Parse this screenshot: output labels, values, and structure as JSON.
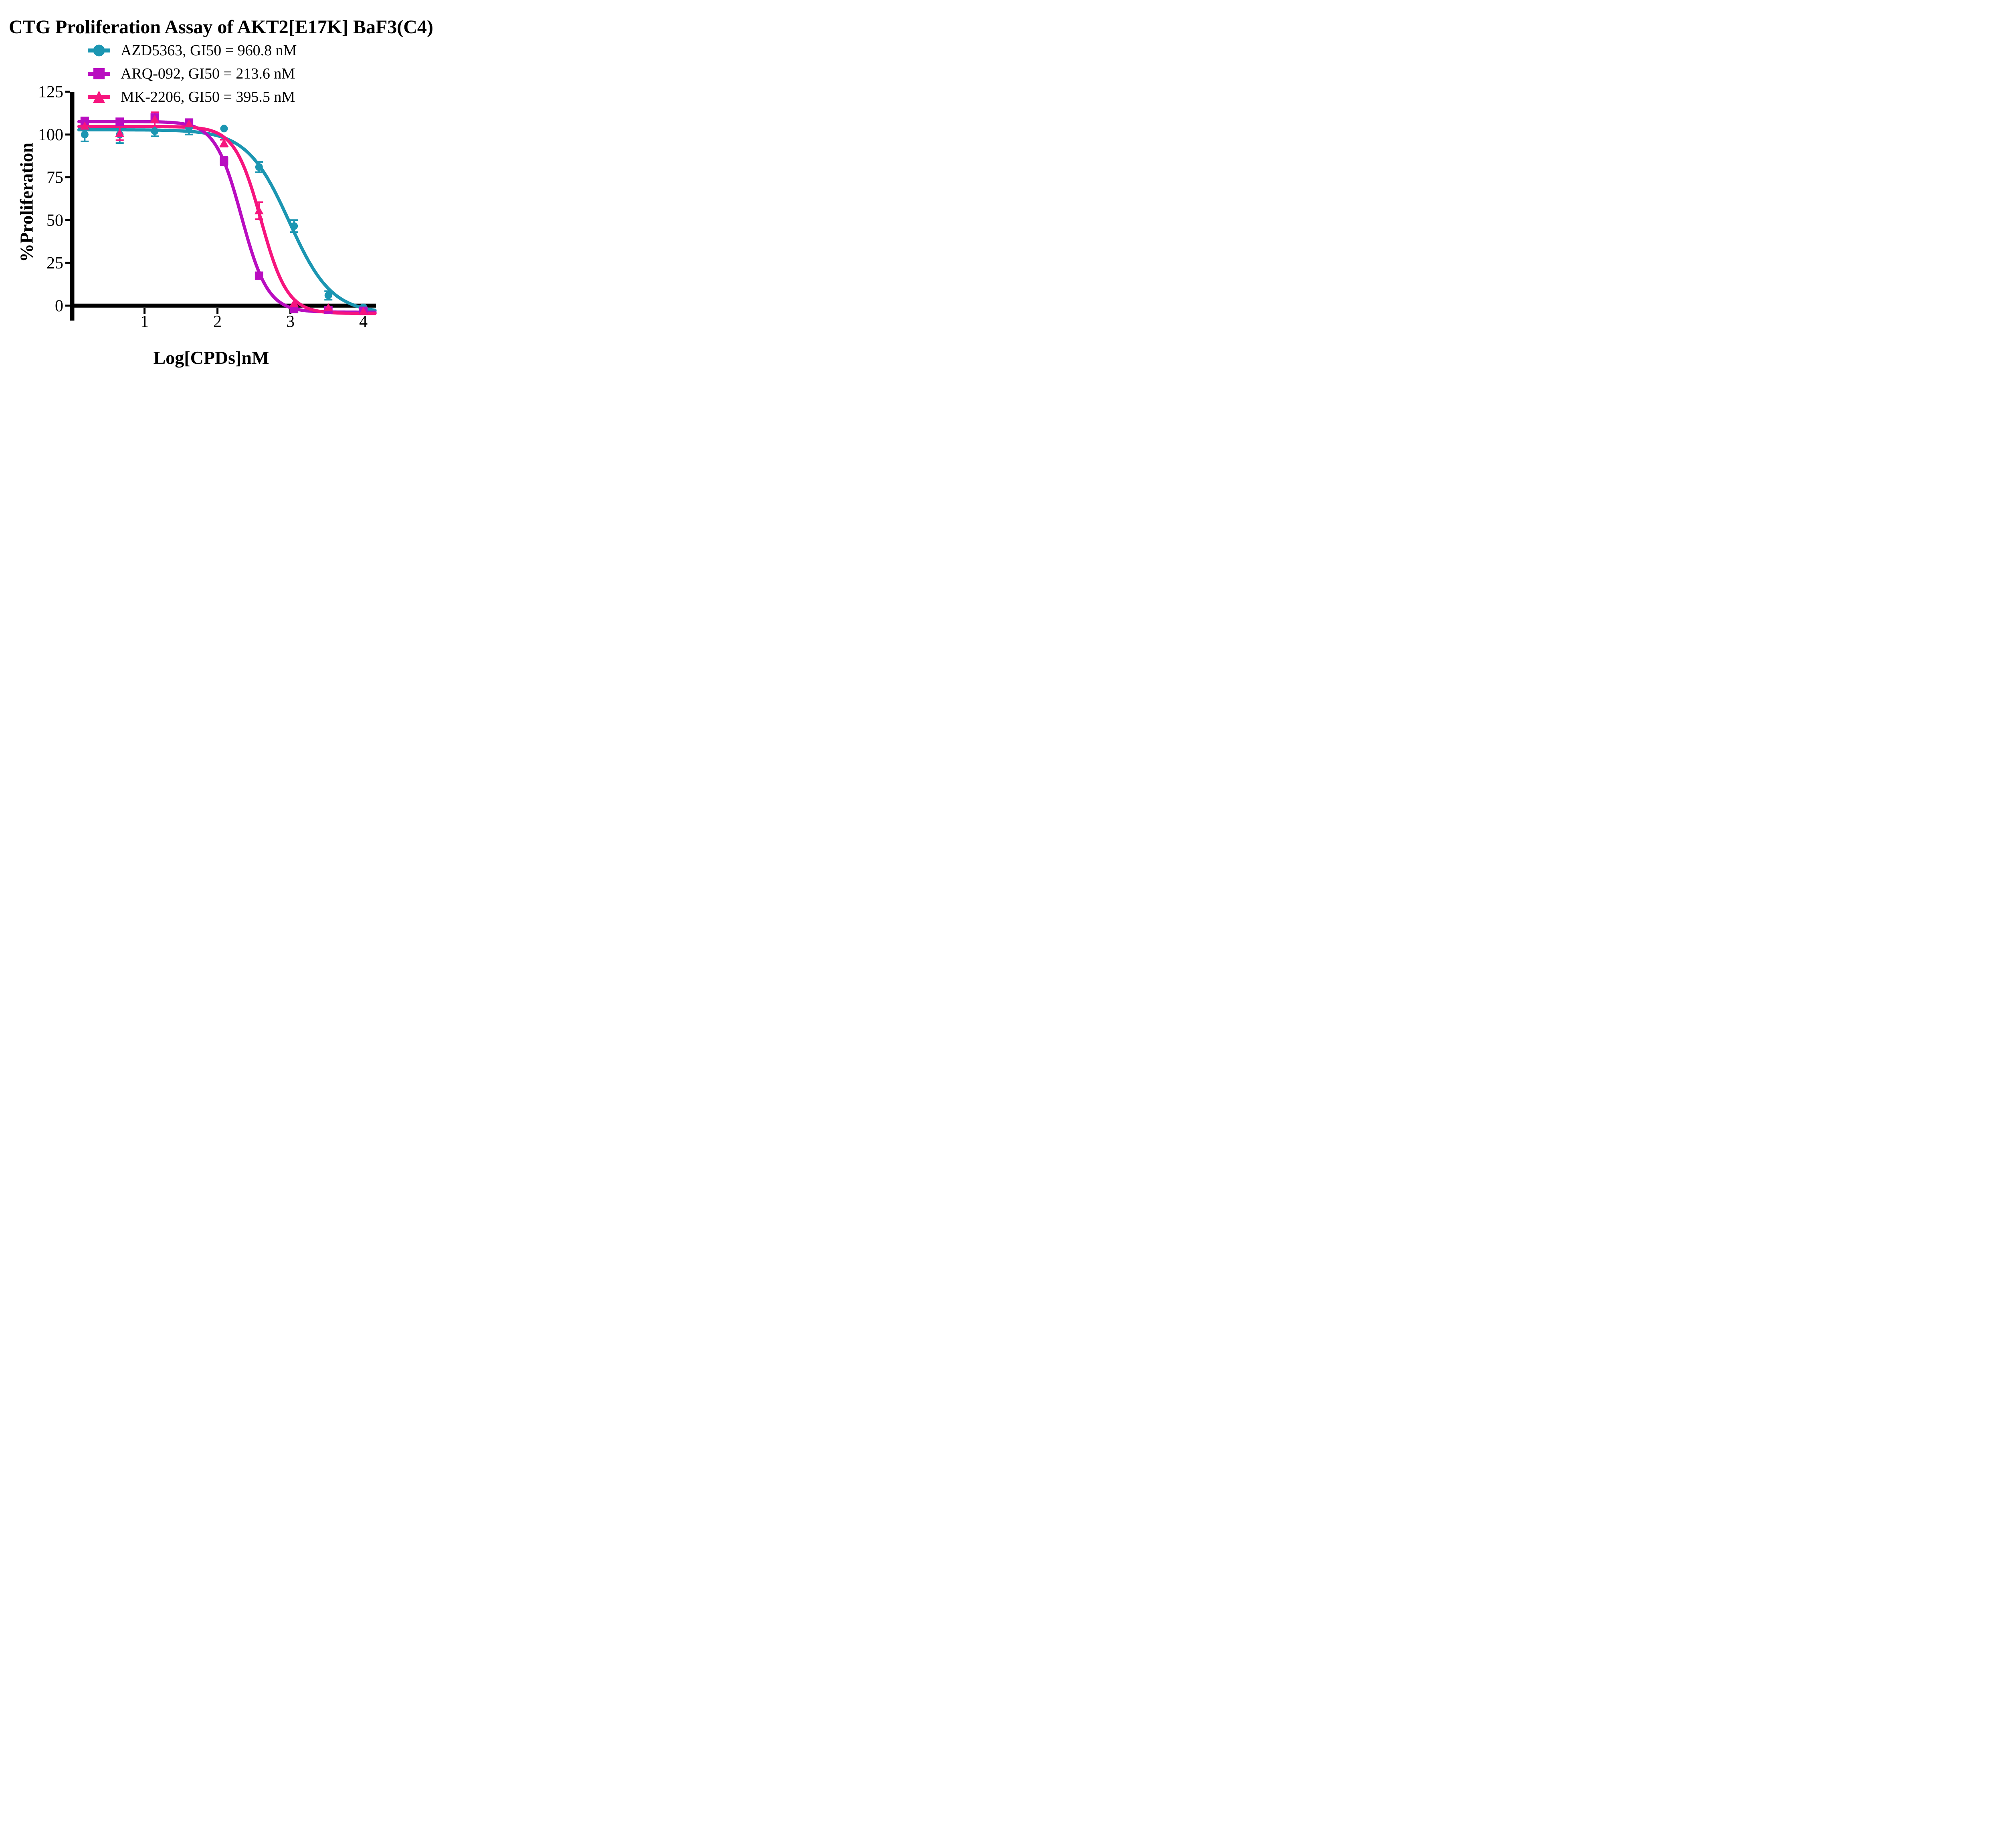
{
  "chart_data": {
    "type": "line",
    "title": "CTG Proliferation Assay of AKT2[E17K] BaF3(C4)",
    "xlabel": "Log[CPDs]nM",
    "ylabel": "%Proliferation",
    "x_ticks": [
      1,
      2,
      3,
      4
    ],
    "y_ticks": [
      0,
      25,
      50,
      75,
      100,
      125
    ],
    "xlim": [
      0,
      4.2
    ],
    "ylim": [
      -8,
      125
    ],
    "grid": false,
    "legend_position": "top-left",
    "axis_color": "#000000",
    "background_color": "#ffffff",
    "series": [
      {
        "name": "AZD5363",
        "legend": "AZD5363, GI50 = 960.8 nM",
        "gi50_nM": 960.8,
        "color": "#1B96B2",
        "marker": "circle",
        "x": [
          0.18,
          0.66,
          1.14,
          1.61,
          2.09,
          2.57,
          3.05,
          3.52,
          4.0
        ],
        "y": [
          100,
          100,
          102,
          104,
          103.5,
          81,
          46.5,
          6,
          -1
        ],
        "err": [
          4,
          5,
          3,
          4,
          0,
          3,
          3.5,
          2.5,
          0
        ],
        "fit": {
          "top": 102.8,
          "bottom": -4.5,
          "logGI50": 2.983,
          "hill": 1.5
        }
      },
      {
        "name": "ARQ-092",
        "legend": "ARQ-092, GI50 = 213.6 nM",
        "gi50_nM": 213.6,
        "color": "#B90DC0",
        "marker": "square",
        "x": [
          0.18,
          0.66,
          1.14,
          1.61,
          2.09,
          2.57,
          3.05,
          3.52,
          4.0
        ],
        "y": [
          108,
          107.5,
          110,
          107,
          84.5,
          17.5,
          -2,
          -2.5,
          -3
        ],
        "err": [
          2,
          0,
          1.5,
          1,
          2.5,
          1,
          0,
          1,
          0
        ],
        "fit": {
          "top": 107.6,
          "bottom": -3.8,
          "logGI50": 2.33,
          "hill": 2.4
        }
      },
      {
        "name": "MK-2206",
        "legend": "MK-2206, GI50 = 395.5 nM",
        "gi50_nM": 395.5,
        "color": "#F6157E",
        "marker": "triangle",
        "x": [
          0.18,
          0.66,
          1.14,
          1.61,
          2.09,
          2.57,
          3.05,
          3.52,
          4.0
        ],
        "y": [
          105,
          100.7,
          109,
          106.3,
          95,
          55.5,
          1.3,
          -1.2,
          -3.3
        ],
        "err": [
          1.5,
          4,
          4,
          0,
          2,
          5,
          0,
          0,
          0
        ],
        "fit": {
          "top": 104.7,
          "bottom": -4.6,
          "logGI50": 2.597,
          "hill": 2.4
        }
      }
    ]
  }
}
